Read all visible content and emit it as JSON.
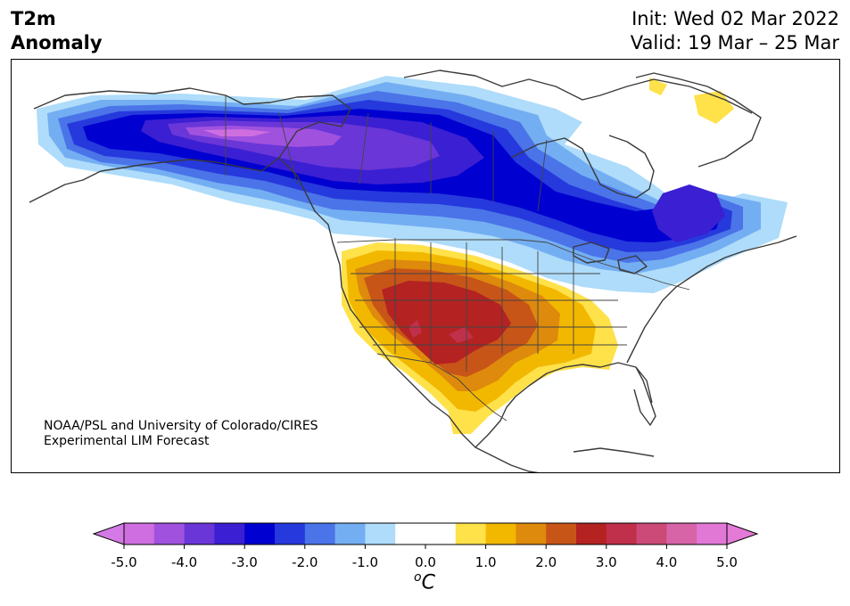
{
  "title": {
    "line1": "T2m",
    "line2": "Anomaly"
  },
  "info": {
    "init": "Init: Wed 02 Mar 2022",
    "valid": "Valid: 19 Mar – 25 Mar"
  },
  "credit": {
    "line1": "NOAA/PSL and University of Colorado/CIRES",
    "line2": "Experimental LIM Forecast"
  },
  "colorbar": {
    "unit_base": "C",
    "unit_sup": "o",
    "tick_labels": [
      "-5.0",
      "-4.0",
      "-3.0",
      "-2.0",
      "-1.0",
      "0.0",
      "1.0",
      "2.0",
      "3.0",
      "4.0",
      "5.0"
    ],
    "colors": [
      "#cf6ee0",
      "#a052de",
      "#6a36d8",
      "#3b1fd2",
      "#0000d0",
      "#2639dc",
      "#4a74e8",
      "#74aef2",
      "#aedcfa",
      "#ffffff",
      "#ffffff",
      "#ffe14a",
      "#f2b800",
      "#de8a0c",
      "#c85518",
      "#b42222",
      "#c0304a",
      "#cc4a78",
      "#d864a8",
      "#e278d6"
    ],
    "extend_low_color": "#d47ae6",
    "extend_high_color": "#e47ad8"
  }
}
